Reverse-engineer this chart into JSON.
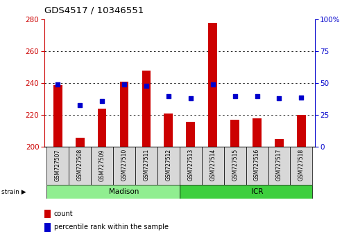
{
  "title": "GDS4517 / 10346551",
  "samples": [
    "GSM727507",
    "GSM727508",
    "GSM727509",
    "GSM727510",
    "GSM727511",
    "GSM727512",
    "GSM727513",
    "GSM727514",
    "GSM727515",
    "GSM727516",
    "GSM727517",
    "GSM727518"
  ],
  "count_values": [
    239,
    206,
    224,
    241,
    248,
    221,
    216,
    278,
    217,
    218,
    205,
    220
  ],
  "percentile_values": [
    49,
    33,
    36,
    49,
    48,
    40,
    38,
    49,
    40,
    40,
    38,
    39
  ],
  "bar_bottom": 200,
  "left_ylim": [
    200,
    280
  ],
  "right_ylim": [
    0,
    100
  ],
  "left_yticks": [
    200,
    220,
    240,
    260,
    280
  ],
  "right_yticks": [
    0,
    25,
    50,
    75,
    100
  ],
  "bar_color": "#cc0000",
  "dot_color": "#0000cc",
  "left_tick_color": "#cc0000",
  "right_tick_color": "#0000cc",
  "groups": [
    {
      "label": "Madison",
      "start": 0,
      "end": 6,
      "color": "#90ee90"
    },
    {
      "label": "ICR",
      "start": 6,
      "end": 12,
      "color": "#3ecf3e"
    }
  ],
  "strain_label": "strain",
  "legend_count": "count",
  "legend_percentile": "percentile rank within the sample",
  "sample_bg_color": "#d8d8d8",
  "bar_width": 0.4,
  "dot_size": 20
}
